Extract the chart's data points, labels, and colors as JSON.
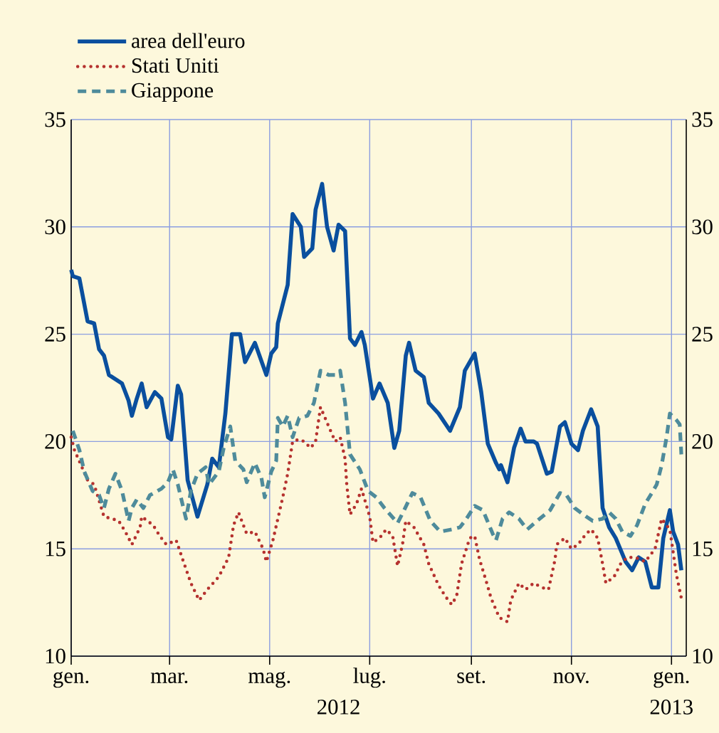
{
  "chart_data": {
    "type": "line",
    "xlim": [
      "2012-01-01",
      "2013-01-10"
    ],
    "ylim": [
      10,
      35
    ],
    "y2lim": [
      10,
      35
    ],
    "xticks": [
      {
        "value": "2012-01-01",
        "label": "gen."
      },
      {
        "value": "2012-03-01",
        "label": "mar."
      },
      {
        "value": "2012-05-01",
        "label": "mag."
      },
      {
        "value": "2012-07-01",
        "label": "lug."
      },
      {
        "value": "2012-09-01",
        "label": "set."
      },
      {
        "value": "2012-11-01",
        "label": "nov."
      },
      {
        "value": "2013-01-01",
        "label": "gen."
      }
    ],
    "yticks": [
      10,
      15,
      20,
      25,
      30,
      35
    ],
    "y2ticks": [
      10,
      15,
      20,
      25,
      30,
      35
    ],
    "grid": true,
    "legend": "top left",
    "annotations": [
      "2012",
      "2013"
    ],
    "series": [
      {
        "name": "area dell'euro",
        "color": "#0a4f9e",
        "line_style": "solid",
        "x": [
          "2012-01-01",
          "2012-01-02",
          "2012-01-06",
          "2012-01-11",
          "2012-01-15",
          "2012-01-18",
          "2012-01-21",
          "2012-01-24",
          "2012-02-01",
          "2012-02-05",
          "2012-02-07",
          "2012-02-10",
          "2012-02-13",
          "2012-02-16",
          "2012-02-21",
          "2012-02-25",
          "2012-02-29",
          "2012-03-02",
          "2012-03-06",
          "2012-03-08",
          "2012-03-12",
          "2012-03-18",
          "2012-03-24",
          "2012-03-27",
          "2012-03-31",
          "2012-04-04",
          "2012-04-08",
          "2012-04-13",
          "2012-04-16",
          "2012-04-22",
          "2012-04-29",
          "2012-05-02",
          "2012-05-05",
          "2012-05-06",
          "2012-05-12",
          "2012-05-15",
          "2012-05-20",
          "2012-05-22",
          "2012-05-27",
          "2012-05-29",
          "2012-06-02",
          "2012-06-05",
          "2012-06-09",
          "2012-06-12",
          "2012-06-16",
          "2012-06-19",
          "2012-06-22",
          "2012-06-26",
          "2012-06-28",
          "2012-07-03",
          "2012-07-07",
          "2012-07-12",
          "2012-07-16",
          "2012-07-19",
          "2012-07-23",
          "2012-07-25",
          "2012-07-29",
          "2012-08-03",
          "2012-08-06",
          "2012-08-12",
          "2012-08-19",
          "2012-08-25",
          "2012-08-28",
          "2012-09-03",
          "2012-09-07",
          "2012-09-11",
          "2012-09-16",
          "2012-09-18",
          "2012-09-19",
          "2012-09-23",
          "2012-09-27",
          "2012-10-01",
          "2012-10-04",
          "2012-10-09",
          "2012-10-11",
          "2012-10-17",
          "2012-10-20",
          "2012-10-25",
          "2012-10-28",
          "2012-11-01",
          "2012-11-05",
          "2012-11-08",
          "2012-11-13",
          "2012-11-17",
          "2012-11-20",
          "2012-11-24",
          "2012-11-28",
          "2012-12-04",
          "2012-12-08",
          "2012-12-12",
          "2012-12-16",
          "2012-12-20",
          "2012-12-24",
          "2012-12-27",
          "2012-12-31",
          "2013-01-02",
          "2013-01-05",
          "2013-01-07"
        ],
        "values": [
          28.0,
          27.7,
          27.6,
          25.6,
          25.5,
          24.3,
          24.0,
          23.1,
          22.7,
          21.9,
          21.2,
          22.0,
          22.7,
          21.6,
          22.3,
          22.0,
          20.2,
          20.1,
          22.6,
          22.2,
          18.2,
          16.5,
          18.0,
          19.2,
          18.8,
          21.3,
          25.0,
          25.0,
          23.7,
          24.6,
          23.1,
          24.1,
          24.4,
          25.5,
          27.3,
          30.6,
          30.0,
          28.6,
          29.0,
          30.8,
          32.0,
          30.0,
          28.9,
          30.1,
          29.8,
          24.8,
          24.5,
          25.1,
          24.5,
          22.0,
          22.7,
          21.8,
          19.7,
          20.5,
          24.0,
          24.6,
          23.3,
          23.0,
          21.8,
          21.3,
          20.5,
          21.6,
          23.3,
          24.1,
          22.3,
          19.9,
          19.0,
          18.7,
          18.9,
          18.1,
          19.7,
          20.6,
          20.0,
          20.0,
          19.9,
          18.5,
          18.6,
          20.7,
          20.9,
          19.9,
          19.6,
          20.5,
          21.5,
          20.7,
          16.9,
          16.0,
          15.5,
          14.4,
          14.0,
          14.6,
          14.4,
          13.2,
          13.2,
          15.5,
          16.8,
          15.8,
          15.2,
          14.0
        ]
      },
      {
        "name": "Stati Uniti",
        "color": "#b5312e",
        "line_style": "dotted",
        "x": [
          "2012-01-01",
          "2012-01-03",
          "2012-01-11",
          "2012-01-15",
          "2012-01-21",
          "2012-01-26",
          "2012-01-30",
          "2012-02-03",
          "2012-02-07",
          "2012-02-12",
          "2012-02-13",
          "2012-02-20",
          "2012-02-24",
          "2012-02-28",
          "2012-03-05",
          "2012-03-09",
          "2012-03-14",
          "2012-03-19",
          "2012-03-24",
          "2012-03-31",
          "2012-04-06",
          "2012-04-09",
          "2012-04-12",
          "2012-04-15",
          "2012-04-17",
          "2012-04-22",
          "2012-04-27",
          "2012-04-29",
          "2012-05-03",
          "2012-05-06",
          "2012-05-09",
          "2012-05-12",
          "2012-05-15",
          "2012-05-19",
          "2012-05-22",
          "2012-05-26",
          "2012-05-29",
          "2012-06-01",
          "2012-06-06",
          "2012-06-10",
          "2012-06-13",
          "2012-06-16",
          "2012-06-17",
          "2012-06-19",
          "2012-06-23",
          "2012-06-26",
          "2012-07-01",
          "2012-07-03",
          "2012-07-07",
          "2012-07-11",
          "2012-07-15",
          "2012-07-18",
          "2012-07-21",
          "2012-07-23",
          "2012-07-28",
          "2012-08-03",
          "2012-08-06",
          "2012-08-12",
          "2012-08-16",
          "2012-08-20",
          "2012-08-23",
          "2012-08-26",
          "2012-08-31",
          "2012-09-03",
          "2012-09-06",
          "2012-09-10",
          "2012-09-13",
          "2012-09-18",
          "2012-09-23",
          "2012-09-25",
          "2012-09-30",
          "2012-10-04",
          "2012-10-09",
          "2012-10-14",
          "2012-10-18",
          "2012-10-22",
          "2012-10-23",
          "2012-10-28",
          "2012-11-01",
          "2012-11-05",
          "2012-11-10",
          "2012-11-13",
          "2012-11-17",
          "2012-11-20",
          "2012-11-22",
          "2012-11-27",
          "2012-12-01",
          "2012-12-05",
          "2012-12-10",
          "2012-12-16",
          "2012-12-22",
          "2012-12-26",
          "2012-12-29",
          "2012-12-31",
          "2013-01-04",
          "2013-01-07"
        ],
        "values": [
          20.2,
          19.6,
          18.2,
          18.0,
          16.5,
          16.4,
          16.3,
          15.8,
          15.2,
          16.0,
          16.5,
          16.1,
          15.6,
          15.2,
          15.4,
          14.5,
          13.4,
          12.6,
          13.1,
          13.7,
          14.6,
          16.1,
          16.7,
          16.1,
          15.7,
          15.8,
          15.0,
          14.4,
          15.4,
          16.4,
          17.4,
          18.5,
          20.0,
          20.1,
          20.0,
          19.7,
          20.0,
          21.6,
          20.7,
          20.0,
          20.2,
          19.2,
          18.0,
          16.6,
          17.1,
          17.8,
          16.5,
          15.3,
          15.5,
          15.9,
          15.6,
          14.2,
          15.2,
          16.3,
          16.0,
          15.2,
          14.3,
          13.3,
          12.8,
          12.4,
          12.8,
          14.3,
          15.5,
          15.6,
          14.5,
          13.5,
          12.7,
          11.8,
          11.6,
          12.6,
          13.4,
          13.1,
          13.4,
          13.2,
          13.1,
          14.5,
          15.2,
          15.5,
          15.0,
          15.2,
          15.7,
          15.9,
          15.5,
          14.3,
          13.4,
          13.7,
          14.3,
          14.6,
          14.6,
          14.4,
          15.0,
          16.4,
          16.1,
          15.9,
          13.8,
          12.7
        ]
      },
      {
        "name": "Giappone",
        "color": "#4e8b9b",
        "line_style": "dashed",
        "x": [
          "2012-01-02",
          "2012-01-06",
          "2012-01-09",
          "2012-01-14",
          "2012-01-18",
          "2012-01-21",
          "2012-01-24",
          "2012-01-28",
          "2012-02-01",
          "2012-02-05",
          "2012-02-07",
          "2012-02-10",
          "2012-02-14",
          "2012-02-18",
          "2012-02-25",
          "2012-02-29",
          "2012-03-03",
          "2012-03-06",
          "2012-03-11",
          "2012-03-14",
          "2012-03-18",
          "2012-03-23",
          "2012-03-25",
          "2012-03-31",
          "2012-04-03",
          "2012-04-07",
          "2012-04-10",
          "2012-04-15",
          "2012-04-17",
          "2012-04-22",
          "2012-04-26",
          "2012-04-28",
          "2012-05-02",
          "2012-05-05",
          "2012-05-06",
          "2012-05-09",
          "2012-05-12",
          "2012-05-15",
          "2012-05-19",
          "2012-05-24",
          "2012-05-28",
          "2012-06-01",
          "2012-06-06",
          "2012-06-10",
          "2012-06-13",
          "2012-06-16",
          "2012-06-19",
          "2012-06-25",
          "2012-06-30",
          "2012-07-05",
          "2012-07-10",
          "2012-07-18",
          "2012-07-22",
          "2012-07-27",
          "2012-08-01",
          "2012-08-07",
          "2012-08-13",
          "2012-08-20",
          "2012-08-25",
          "2012-08-29",
          "2012-09-03",
          "2012-09-08",
          "2012-09-14",
          "2012-09-16",
          "2012-09-20",
          "2012-09-24",
          "2012-09-30",
          "2012-10-05",
          "2012-10-11",
          "2012-10-19",
          "2012-10-25",
          "2012-10-29",
          "2012-11-03",
          "2012-11-10",
          "2012-11-14",
          "2012-11-20",
          "2012-11-24",
          "2012-11-28",
          "2012-12-02",
          "2012-12-07",
          "2012-12-11",
          "2012-12-16",
          "2012-12-20",
          "2012-12-23",
          "2012-12-26",
          "2012-12-29",
          "2012-12-31",
          "2013-01-04",
          "2013-01-06",
          "2013-01-07"
        ],
        "values": [
          20.5,
          19.6,
          18.6,
          17.7,
          17.5,
          16.9,
          17.8,
          18.5,
          17.7,
          16.3,
          16.9,
          17.3,
          16.9,
          17.5,
          17.8,
          18.1,
          18.7,
          18.0,
          16.4,
          17.7,
          18.5,
          18.8,
          18.0,
          18.6,
          19.7,
          20.7,
          19.1,
          18.7,
          18.1,
          19.0,
          18.3,
          17.4,
          18.6,
          19.1,
          21.1,
          20.7,
          21.2,
          20.2,
          21.1,
          21.2,
          21.8,
          23.3,
          23.1,
          23.1,
          23.3,
          21.8,
          19.4,
          18.7,
          17.7,
          17.4,
          16.9,
          16.2,
          16.8,
          17.6,
          17.4,
          16.3,
          15.8,
          15.9,
          16.0,
          16.4,
          17.0,
          16.8,
          15.7,
          15.4,
          16.4,
          16.7,
          16.4,
          15.9,
          16.3,
          16.8,
          17.6,
          17.5,
          16.9,
          16.5,
          16.3,
          16.4,
          16.7,
          16.4,
          15.8,
          15.6,
          16.1,
          17.1,
          17.6,
          18.0,
          18.9,
          20.2,
          21.3,
          21.0,
          20.8,
          19.4
        ]
      }
    ]
  }
}
